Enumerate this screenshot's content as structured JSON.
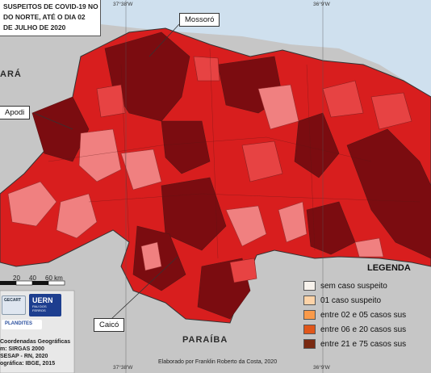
{
  "title": {
    "lines": [
      "SUSPEITOS DE COVID-19 NO",
      "DO NORTE, ATÉ O DIA 02",
      "DE JULHO DE 2020"
    ]
  },
  "callouts": {
    "mossoro": "Mossoró",
    "apodi": "Apodi",
    "caico": "Caicó"
  },
  "states": {
    "ceara": "ARÁ",
    "paraiba": "PARAÍBA"
  },
  "coords": {
    "top_left": "37°38'W",
    "top_right": "36°9'W",
    "bottom_left": "37°38'W",
    "bottom_right": "36°9'W"
  },
  "scale": {
    "labels": [
      "20",
      "40",
      "60 km"
    ]
  },
  "legend": {
    "title": "LEGENDA",
    "items": [
      {
        "label": "sem caso suspeito",
        "color": "#f7f2ec"
      },
      {
        "label": "01 caso suspeito",
        "color": "#fdd3a8"
      },
      {
        "label": "entre 02 e 05 casos sus",
        "color": "#f99a4a"
      },
      {
        "label": "entre 06 e 20 casos sus",
        "color": "#e0561a"
      },
      {
        "label": "entre 21 e 75 casos sus",
        "color": "#7a2a12"
      }
    ]
  },
  "info": {
    "lines": [
      "Coordenadas Geográficas",
      "m: SIRGAS 2000",
      "SESAP - RN, 2020",
      "ográfica: IBGE, 2015"
    ]
  },
  "logos": {
    "uern": "UERN",
    "uern_sub": "PAU DOS FERROS",
    "plandites": "PLANDITES",
    "gecart": "GECART"
  },
  "credit": "Elaborado por Franklin Roberto da Costa, 2020",
  "colors": {
    "sea": "#cfe0ee",
    "land_out": "#c6c6c6",
    "dark": "#7b0c10",
    "red": "#d81e1e",
    "mid": "#e74343",
    "light": "#f08080"
  }
}
